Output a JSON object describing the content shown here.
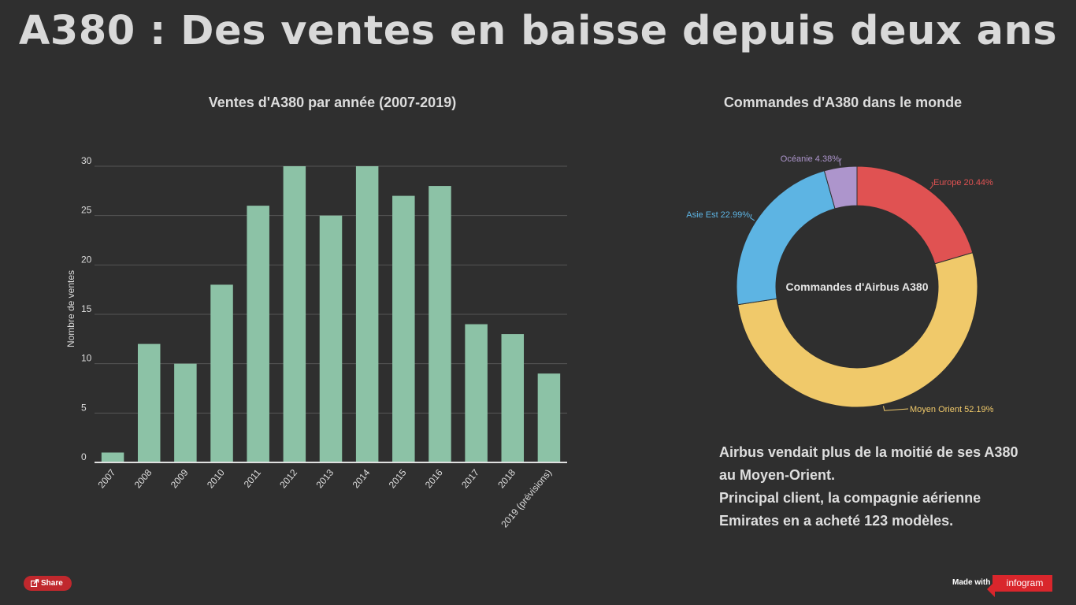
{
  "page": {
    "title": "A380 : Des ventes en baisse depuis deux ans"
  },
  "chart_data": [
    {
      "type": "bar",
      "title": "Ventes d'A380 par année (2007-2019)",
      "xlabel": "",
      "ylabel": "Nombre de ventes",
      "categories": [
        "2007",
        "2008",
        "2009",
        "2010",
        "2011",
        "2012",
        "2013",
        "2014",
        "2015",
        "2016",
        "2017",
        "2018",
        "2019 (prévisions)"
      ],
      "values": [
        1,
        12,
        10,
        18,
        26,
        30,
        25,
        30,
        27,
        28,
        14,
        13,
        9
      ],
      "ylim": [
        0,
        30
      ],
      "yticks": [
        "0",
        "5",
        "10",
        "15",
        "20",
        "25",
        "30"
      ],
      "grid": true,
      "color": "#8cc2a6"
    },
    {
      "type": "pie",
      "variant": "donut",
      "title": "Commandes d'A380 dans le monde",
      "center_label": "Commandes d'Airbus A380",
      "slices": [
        {
          "name": "Europe",
          "value": 20.44,
          "label": "Europe 20.44%",
          "color": "#e05252"
        },
        {
          "name": "Moyen Orient",
          "value": 52.19,
          "label": "Moyen Orient 52.19%",
          "color": "#f0c96a"
        },
        {
          "name": "Asie Est",
          "value": 22.99,
          "label": "Asie Est 22.99%",
          "color": "#5db4e3"
        },
        {
          "name": "Océanie",
          "value": 4.38,
          "label": "Océanie 4.38%",
          "color": "#ad95cc"
        }
      ]
    }
  ],
  "caption": {
    "line1": "Airbus vendait plus de la moitié de ses A380",
    "line2": "au Moyen-Orient.",
    "line3": "Principal client, la compagnie aérienne",
    "line4": "Emirates en a acheté 123 modèles."
  },
  "footer": {
    "share_label": "Share",
    "made_with": "Made with",
    "brand": "infogram"
  }
}
